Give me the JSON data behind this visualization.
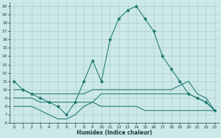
{
  "xlabel": "Humidex (Indice chaleur)",
  "xlim": [
    -0.5,
    23.5
  ],
  "ylim": [
    6,
    20.5
  ],
  "yticks": [
    6,
    7,
    8,
    9,
    10,
    11,
    12,
    13,
    14,
    15,
    16,
    17,
    18,
    19,
    20
  ],
  "xticks": [
    0,
    1,
    2,
    3,
    4,
    5,
    6,
    7,
    8,
    9,
    10,
    11,
    12,
    13,
    14,
    15,
    16,
    17,
    18,
    19,
    20,
    21,
    22,
    23
  ],
  "bg_color": "#cce8e8",
  "line_color": "#1a7a6e",
  "grid_color": "#aacccc",
  "line1_x": [
    0,
    1,
    2,
    3,
    4,
    5,
    6,
    7,
    8,
    9,
    10,
    11,
    12,
    13,
    14,
    15,
    16,
    17,
    18,
    19,
    20,
    21,
    22,
    23
  ],
  "line1_y": [
    11,
    10,
    9.5,
    9,
    8.5,
    8,
    7,
    8.5,
    11,
    13.5,
    11,
    16,
    18.5,
    19.5,
    20,
    18.5,
    17,
    14,
    12.5,
    11,
    9.5,
    9,
    8.5,
    7.5
  ],
  "line2_x": [
    0,
    1,
    2,
    3,
    4,
    5,
    6,
    7,
    8,
    9,
    10,
    11,
    12,
    13,
    14,
    15,
    16,
    17,
    18,
    19,
    20,
    21,
    22,
    23
  ],
  "line2_y": [
    10,
    10,
    9.5,
    9.5,
    9.5,
    9.5,
    9.5,
    9.5,
    9.5,
    10,
    10,
    10,
    10,
    10,
    10,
    10,
    10,
    10,
    10,
    10.5,
    11,
    9.5,
    9,
    7.5
  ],
  "line3_x": [
    0,
    2,
    3,
    4,
    5,
    6,
    7,
    8,
    9,
    10,
    11,
    12,
    13,
    14,
    15,
    16,
    17,
    18,
    19,
    20,
    21,
    22,
    23
  ],
  "line3_y": [
    9,
    9,
    8.5,
    8.5,
    8.5,
    8.5,
    8.5,
    8.5,
    8.5,
    9.5,
    9.5,
    9.5,
    9.5,
    9.5,
    9.5,
    9.5,
    9.5,
    9.5,
    9.5,
    9.5,
    9,
    8.5,
    7.5
  ],
  "line4_x": [
    0,
    2,
    3,
    4,
    5,
    6,
    7,
    8,
    9,
    10,
    11,
    12,
    13,
    14,
    15,
    16,
    17,
    18,
    19,
    20,
    21,
    22,
    23
  ],
  "line4_y": [
    8,
    8,
    7.5,
    7,
    6.5,
    6.5,
    7,
    8,
    8.5,
    8,
    8,
    8,
    8,
    8,
    7.5,
    7.5,
    7.5,
    7.5,
    7.5,
    7.5,
    7.5,
    7.5,
    7.5
  ]
}
